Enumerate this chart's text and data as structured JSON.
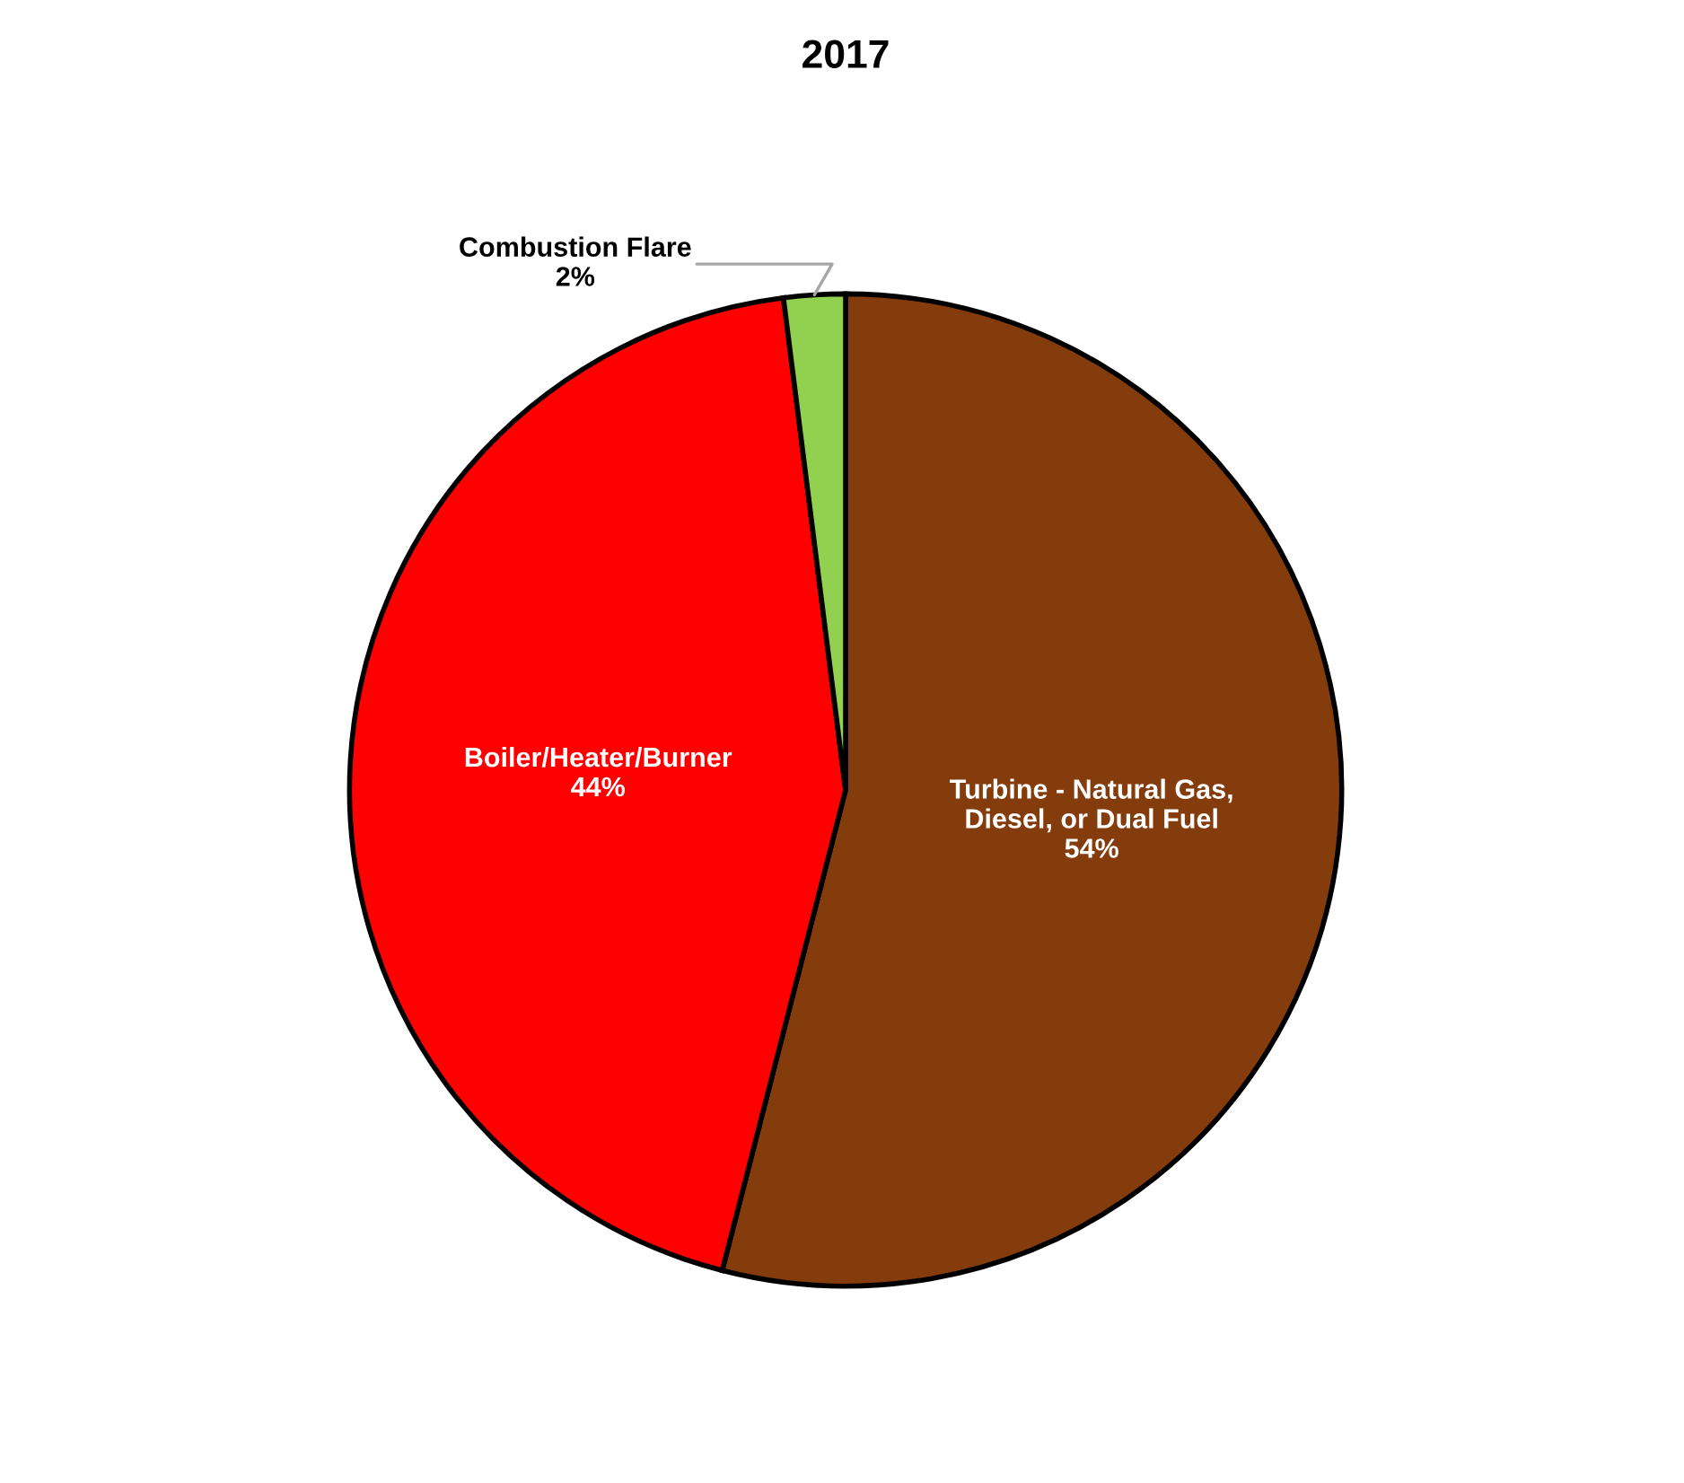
{
  "chart_data": {
    "type": "pie",
    "title": "2017",
    "categories": [
      "Turbine - Natural Gas,\nDiesel, or Dual Fuel",
      "Boiler/Heater/Burner",
      "Combustion Flare"
    ],
    "values": [
      54,
      44,
      2
    ],
    "colors": [
      "#843c0c",
      "#ff0000",
      "#92d050"
    ],
    "value_labels": [
      "54%",
      "44%",
      "2%"
    ],
    "legend": false
  }
}
